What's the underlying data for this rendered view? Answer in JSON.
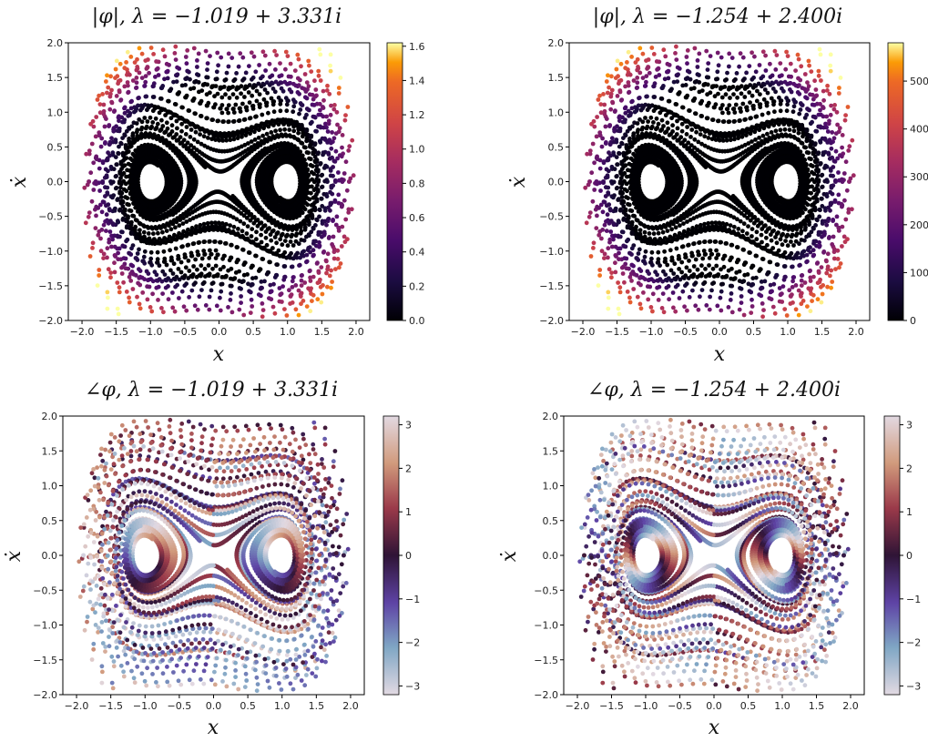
{
  "chart_data": [
    {
      "type": "scatter",
      "title": "|φ|, λ = −1.019 + 3.331i",
      "xlabel": "x",
      "ylabel": "ẋ",
      "xlim": [
        -2.2,
        2.2
      ],
      "ylim": [
        -2.0,
        2.0
      ],
      "xticks": [
        "−2.0",
        "−1.5",
        "−1.0",
        "−0.5",
        "0.0",
        "0.5",
        "1.0",
        "1.5",
        "2.0"
      ],
      "yticks": [
        "−2.0",
        "−1.5",
        "−1.0",
        "−0.5",
        "0.0",
        "0.5",
        "1.0",
        "1.5",
        "2.0"
      ],
      "colormap": "inferno",
      "colorbar": {
        "min": 0.0,
        "max": 1.62,
        "ticks": [
          "0.0",
          "0.2",
          "0.4",
          "0.6",
          "0.8",
          "1.0",
          "1.2",
          "1.4",
          "1.6"
        ],
        "tick_values": [
          0,
          0.2,
          0.4,
          0.6,
          0.8,
          1.0,
          1.2,
          1.4,
          1.6
        ]
      },
      "quantity": "magnitude",
      "lambda": [
        -1.019,
        3.331
      ]
    },
    {
      "type": "scatter",
      "title": "|φ|, λ = −1.254 + 2.400i",
      "xlabel": "x",
      "ylabel": "ẋ",
      "xlim": [
        -2.2,
        2.2
      ],
      "ylim": [
        -2.0,
        2.0
      ],
      "xticks": [
        "−2.0",
        "−1.5",
        "−1.0",
        "−0.5",
        "0.0",
        "0.5",
        "1.0",
        "1.5",
        "2.0"
      ],
      "yticks": [
        "−2.0",
        "−1.5",
        "−1.0",
        "−0.5",
        "0.0",
        "0.5",
        "1.0",
        "1.5",
        "2.0"
      ],
      "colormap": "inferno",
      "colorbar": {
        "min": 0,
        "max": 580,
        "ticks": [
          "0",
          "100",
          "200",
          "300",
          "400",
          "500"
        ],
        "tick_values": [
          0,
          100,
          200,
          300,
          400,
          500
        ]
      },
      "quantity": "magnitude",
      "lambda": [
        -1.254,
        2.4
      ]
    },
    {
      "type": "scatter",
      "title": "∠φ, λ = −1.019 + 3.331i",
      "xlabel": "x",
      "ylabel": "ẋ",
      "xlim": [
        -2.2,
        2.2
      ],
      "ylim": [
        -2.0,
        2.0
      ],
      "xticks": [
        "−2.0",
        "−1.5",
        "−1.0",
        "−0.5",
        "0.0",
        "0.5",
        "1.0",
        "1.5",
        "2.0"
      ],
      "yticks": [
        "−2.0",
        "−1.5",
        "−1.0",
        "−0.5",
        "0.0",
        "0.5",
        "1.0",
        "1.5",
        "2.0"
      ],
      "colormap": "twilight_shifted",
      "colorbar": {
        "min": -3.2,
        "max": 3.2,
        "ticks": [
          "−3",
          "−2",
          "−1",
          "0",
          "1",
          "2",
          "3"
        ],
        "tick_values": [
          -3,
          -2,
          -1,
          0,
          1,
          2,
          3
        ]
      },
      "quantity": "phase",
      "lambda": [
        -1.019,
        3.331
      ]
    },
    {
      "type": "scatter",
      "title": "∠φ, λ = −1.254 + 2.400i",
      "xlabel": "x",
      "ylabel": "ẋ",
      "xlim": [
        -2.2,
        2.2
      ],
      "ylim": [
        -2.0,
        2.0
      ],
      "xticks": [
        "−2.0",
        "−1.5",
        "−1.0",
        "−0.5",
        "0.0",
        "0.5",
        "1.0",
        "1.5",
        "2.0"
      ],
      "yticks": [
        "−2.0",
        "−1.5",
        "−1.0",
        "−0.5",
        "0.0",
        "0.5",
        "1.0",
        "1.5",
        "2.0"
      ],
      "colormap": "twilight_shifted",
      "colorbar": {
        "min": -3.2,
        "max": 3.2,
        "ticks": [
          "−3",
          "−2",
          "−1",
          "0",
          "1",
          "2",
          "3"
        ],
        "tick_values": [
          -3,
          -2,
          -1,
          0,
          1,
          2,
          3
        ]
      },
      "quantity": "phase",
      "lambda": [
        -1.254,
        2.4
      ]
    }
  ]
}
